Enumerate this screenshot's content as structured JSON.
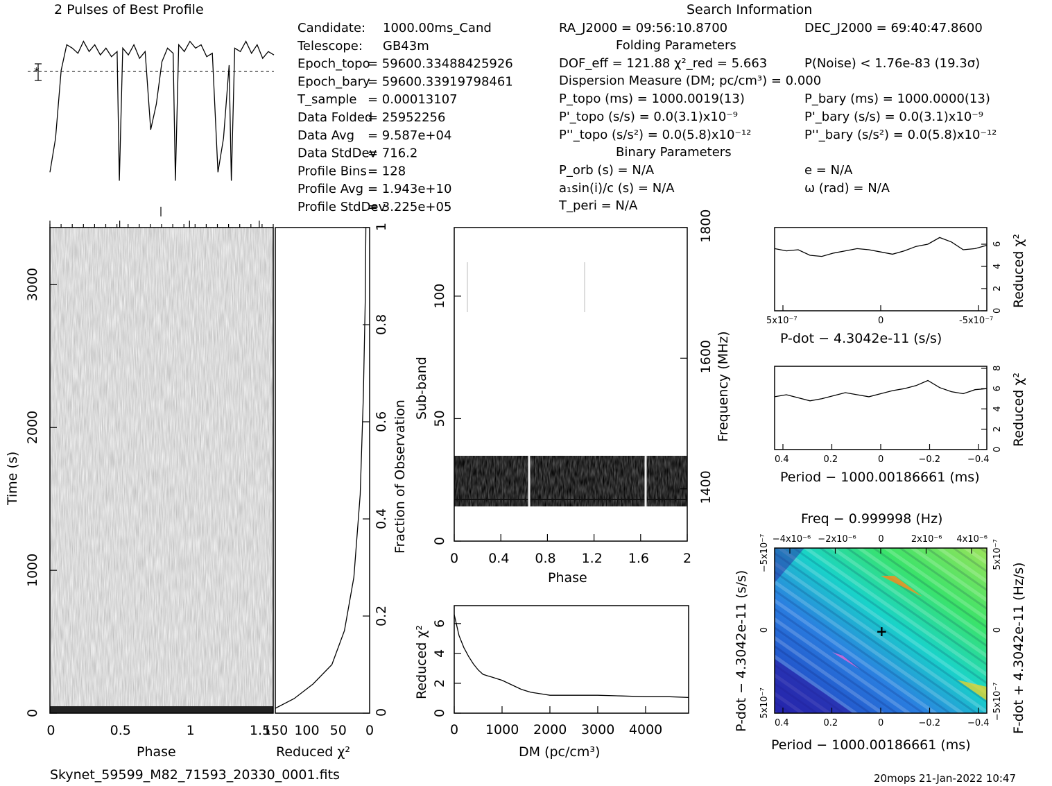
{
  "header": {
    "profile_title": "2 Pulses of Best Profile",
    "search_title": "Search Information",
    "folding_title": "Folding Parameters",
    "binary_title": "Binary Parameters",
    "filename": "Skynet_59599_M82_71593_20330_0001.fits",
    "footer_stamp": "20mops  21-Jan-2022 10:47"
  },
  "info_left": [
    {
      "label": "Candidate:",
      "value": "1000.00ms_Cand"
    },
    {
      "label": "Telescope:",
      "value": "GB43m"
    },
    {
      "label": "Epoch_topo",
      "value": "= 59600.33488425926"
    },
    {
      "label": "Epoch_bary",
      "value": "= 59600.33919798461"
    },
    {
      "label": "T_sample",
      "value": "=   0.00013107"
    },
    {
      "label": "Data Folded",
      "value": "=   25952256"
    },
    {
      "label": "Data Avg",
      "value": "=   9.587e+04"
    },
    {
      "label": "Data StdDev",
      "value": "=   716.2"
    },
    {
      "label": "Profile Bins",
      "value": "=   128"
    },
    {
      "label": "Profile Avg",
      "value": "=   1.943e+10"
    },
    {
      "label": "Profile StdDev",
      "value": "=   3.225e+05"
    }
  ],
  "info_right": {
    "ra": "RA_J2000 = 09:56:10.8700",
    "dec": "DEC_J2000 = 69:40:47.8600",
    "dof": "DOF_eff = 121.88   χ²_red = 5.663",
    "pnoise": "P(Noise) < 1.76e-83   (19.3σ)",
    "dm": "Dispersion Measure (DM; pc/cm³) = 0.000",
    "p_topo": "P_topo (ms) =  1000.0019(13)",
    "p_bary": "P_bary (ms) =  1000.0000(13)",
    "pd_topo": "P'_topo (s/s) = 0.0(3.1)x10⁻⁹",
    "pd_bary": "P'_bary (s/s) = 0.0(3.1)x10⁻⁹",
    "pdd_topo": "P''_topo (s/s²) = 0.0(5.8)x10⁻¹²",
    "pdd_bary": "P''_bary (s/s²) = 0.0(5.8)x10⁻¹²",
    "porb": "P_orb (s) = N/A",
    "e": "e = N/A",
    "a1": "a₁sin(i)/c (s) = N/A",
    "omega": "ω (rad) = N/A",
    "tperi": "T_peri = N/A"
  },
  "chart_data": [
    {
      "type": "line",
      "title": "2 Pulses of Best Profile",
      "x": [
        0,
        0.05,
        0.1,
        0.15,
        0.2,
        0.25,
        0.3,
        0.35,
        0.4,
        0.45,
        0.5,
        0.55,
        0.6,
        0.62,
        0.65,
        0.7,
        0.75,
        0.8,
        0.85,
        0.9,
        0.95,
        1.0,
        1.05,
        1.1,
        1.12,
        1.15,
        1.2,
        1.25,
        1.3,
        1.35,
        1.4,
        1.45,
        1.5,
        1.55,
        1.6,
        1.62,
        1.65,
        1.7,
        1.75,
        1.8,
        1.85,
        1.9,
        1.95,
        2.0
      ],
      "values": [
        0.15,
        0.35,
        0.75,
        0.9,
        0.88,
        0.85,
        0.92,
        0.86,
        0.9,
        0.84,
        0.88,
        0.83,
        0.86,
        0.1,
        0.88,
        0.84,
        0.9,
        0.82,
        0.86,
        0.4,
        0.55,
        0.8,
        0.88,
        0.85,
        0.1,
        0.9,
        0.86,
        0.92,
        0.88,
        0.9,
        0.83,
        0.85,
        0.15,
        0.35,
        0.78,
        0.1,
        0.88,
        0.86,
        0.92,
        0.85,
        0.9,
        0.82,
        0.86,
        0.84
      ]
    },
    {
      "type": "heatmap",
      "title": "",
      "xlabel": "Phase",
      "ylabel": "Time (s)",
      "xticks": [
        "0",
        "0.5",
        "1",
        "1.5"
      ],
      "yticks": [
        "0",
        "1000",
        "2000",
        "3000"
      ],
      "xlim": [
        0,
        2
      ],
      "ylim": [
        0,
        3400
      ]
    },
    {
      "type": "line",
      "xlabel": "Reduced χ²",
      "ylabel": "Fraction of Observation",
      "xticks": [
        "150",
        "100",
        "50",
        "0"
      ],
      "yticks": [
        "0",
        "0.2",
        "0.4",
        "0.6",
        "0.8",
        "1"
      ],
      "x": [
        150,
        120,
        90,
        60,
        40,
        25,
        15,
        10,
        7,
        6
      ],
      "y": [
        0.01,
        0.03,
        0.06,
        0.1,
        0.17,
        0.28,
        0.45,
        0.65,
        0.85,
        1.0
      ]
    },
    {
      "type": "heatmap",
      "xlabel": "Phase",
      "ylabel": "Sub-band",
      "y2label": "Frequency (MHz)",
      "xticks": [
        "0",
        "0.4",
        "0.8",
        "1.2",
        "1.6",
        "2"
      ],
      "yticks": [
        "0",
        "50",
        "100"
      ],
      "y2ticks": [
        "1400",
        "1600",
        "1800"
      ],
      "band_range": [
        15,
        35
      ]
    },
    {
      "type": "line",
      "xlabel": "DM (pc/cm³)",
      "ylabel": "Reduced χ²",
      "xticks": [
        "0",
        "1000",
        "2000",
        "3000",
        "4000"
      ],
      "yticks": [
        "0",
        "2",
        "4",
        "6"
      ],
      "x": [
        0,
        100,
        200,
        300,
        400,
        500,
        600,
        700,
        800,
        900,
        1000,
        1200,
        1400,
        1600,
        1800,
        2000,
        2500,
        3000,
        3500,
        4000,
        4500,
        4900
      ],
      "values": [
        6.6,
        5.2,
        4.4,
        3.8,
        3.3,
        2.9,
        2.6,
        2.5,
        2.4,
        2.3,
        2.2,
        1.9,
        1.6,
        1.4,
        1.3,
        1.2,
        1.2,
        1.2,
        1.15,
        1.1,
        1.1,
        1.05
      ]
    },
    {
      "type": "line",
      "xlabel": "P-dot − 4.3042e-11 (s/s)",
      "ylabel": "Reduced χ²",
      "xticks": [
        "5x10⁻⁷",
        "0",
        "-5x10⁻⁷"
      ],
      "yticks": [
        "0",
        "2",
        "4",
        "6"
      ],
      "values": [
        5.6,
        5.4,
        5.5,
        5.0,
        4.9,
        5.2,
        5.4,
        5.6,
        5.5,
        5.3,
        5.1,
        5.4,
        5.8,
        6.0,
        6.6,
        6.2,
        5.5,
        5.6,
        5.9
      ]
    },
    {
      "type": "line",
      "xlabel": "Period − 1000.00186661 (ms)",
      "ylabel": "Reduced χ²",
      "xticks": [
        "0.4",
        "0.2",
        "0",
        "−0.2",
        "−0.4"
      ],
      "yticks": [
        "0",
        "2",
        "4",
        "6",
        "8"
      ],
      "values": [
        5.2,
        5.4,
        5.1,
        4.8,
        5.0,
        5.3,
        5.6,
        5.4,
        5.2,
        5.5,
        5.8,
        6.0,
        6.3,
        6.8,
        6.1,
        5.7,
        5.5,
        5.9,
        6.0
      ]
    },
    {
      "type": "heatmap",
      "title": "Freq − 0.999998 (Hz)",
      "xlabel": "Period − 1000.00186661 (ms)",
      "ylabel": "P-dot − 4.3042e-11 (s/s)",
      "y2label": "F-dot + 4.3042e-11 (Hz/s)",
      "xticks": [
        "0.4",
        "0.2",
        "0",
        "−0.2",
        "−0.4"
      ],
      "x2ticks": [
        "−4x10⁻⁶",
        "−2x10⁻⁶",
        "0",
        "2x10⁻⁶",
        "4x10⁻⁶"
      ],
      "yticks": [
        "−5x10⁻⁷",
        "0",
        "5x10⁻⁷"
      ],
      "y2ticks": [
        "5x10⁻⁷",
        "0",
        "−5x10⁻⁷"
      ]
    }
  ]
}
